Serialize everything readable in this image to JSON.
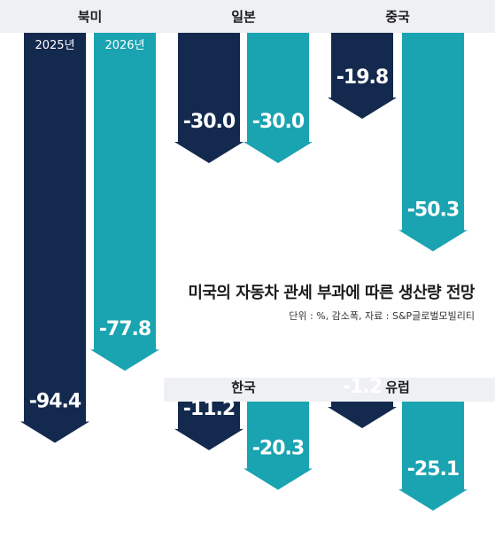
{
  "chart_data": {
    "type": "bar",
    "title": "미국의 자동차 관세 부과에 따른 생산량 전망",
    "note": "단위 : %, 감소폭, 자료 : S&P글로벌모빌리티",
    "series": [
      {
        "name": "2025년",
        "color": "#14294e"
      },
      {
        "name": "2026년",
        "color": "#1aa3b1"
      }
    ],
    "panels": [
      {
        "label": "북미",
        "values": [
          -94.4,
          -77.8
        ]
      },
      {
        "label": "일본",
        "values": [
          -30.0,
          -30.0
        ]
      },
      {
        "label": "중국",
        "values": [
          -19.8,
          -50.3
        ]
      },
      {
        "label": "한국",
        "values": [
          -11.2,
          -20.3
        ]
      },
      {
        "label": "유럽",
        "values": [
          -1.2,
          -25.1
        ]
      }
    ],
    "value_labels": [
      [
        "-94.4",
        "-77.8"
      ],
      [
        "-30.0",
        "-30.0"
      ],
      [
        "-19.8",
        "-50.3"
      ],
      [
        "-11.2",
        "-20.3"
      ],
      [
        "-1.2",
        "-25.1"
      ]
    ],
    "ylim": [
      -100,
      0
    ]
  }
}
